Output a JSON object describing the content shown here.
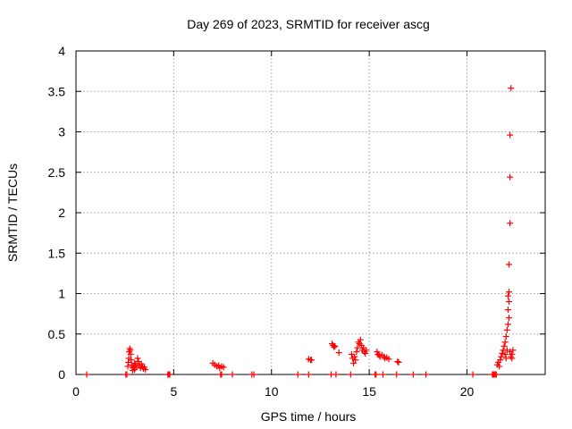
{
  "chart_data": {
    "type": "scatter",
    "title": "Day 269 of 2023, SRMTID for receiver ascg",
    "xlabel": "GPS time / hours",
    "ylabel": "SRMTID / TECUs",
    "xlim": [
      0,
      24
    ],
    "ylim": [
      0,
      4
    ],
    "xticks": [
      0,
      5,
      10,
      15,
      20
    ],
    "xtick_labels": [
      "0",
      "5",
      "10",
      "15",
      "20"
    ],
    "yticks": [
      0,
      0.5,
      1,
      1.5,
      2,
      2.5,
      3,
      3.5,
      4
    ],
    "ytick_labels": [
      "0",
      "0.5",
      "1",
      "1.5",
      "2",
      "2.5",
      "3",
      "3.5",
      "4"
    ],
    "grid": true,
    "marker": "+",
    "color": "#ff0000",
    "series": [
      {
        "name": "SRMTID",
        "points": [
          [
            0.55,
            0.0
          ],
          [
            2.55,
            0.0
          ],
          [
            2.6,
            0.0
          ],
          [
            2.65,
            0.1
          ],
          [
            2.68,
            0.15
          ],
          [
            2.7,
            0.2
          ],
          [
            2.72,
            0.28
          ],
          [
            2.75,
            0.32
          ],
          [
            2.78,
            0.3
          ],
          [
            2.8,
            0.25
          ],
          [
            2.82,
            0.18
          ],
          [
            2.85,
            0.12
          ],
          [
            2.9,
            0.08
          ],
          [
            2.95,
            0.1
          ],
          [
            3.0,
            0.14
          ],
          [
            3.05,
            0.12
          ],
          [
            3.1,
            0.09
          ],
          [
            3.15,
            0.2
          ],
          [
            3.2,
            0.16
          ],
          [
            3.25,
            0.11
          ],
          [
            3.3,
            0.08
          ],
          [
            3.35,
            0.13
          ],
          [
            3.4,
            0.1
          ],
          [
            3.45,
            0.07
          ],
          [
            3.5,
            0.09
          ],
          [
            3.55,
            0.06
          ],
          [
            2.9,
            0.05
          ],
          [
            3.0,
            0.06
          ],
          [
            4.7,
            0.0
          ],
          [
            4.75,
            0.0
          ],
          [
            4.8,
            0.0
          ],
          [
            7.0,
            0.14
          ],
          [
            7.1,
            0.12
          ],
          [
            7.2,
            0.1
          ],
          [
            7.3,
            0.11
          ],
          [
            7.35,
            0.08
          ],
          [
            7.45,
            0.1
          ],
          [
            7.55,
            0.09
          ],
          [
            7.4,
            0.0
          ],
          [
            7.45,
            0.0
          ],
          [
            8.0,
            0.0
          ],
          [
            9.0,
            0.0
          ],
          [
            9.1,
            0.0
          ],
          [
            11.35,
            0.0
          ],
          [
            11.9,
            0.19
          ],
          [
            12.0,
            0.18
          ],
          [
            12.05,
            0.18
          ],
          [
            11.9,
            0.0
          ],
          [
            13.05,
            0.0
          ],
          [
            13.1,
            0.38
          ],
          [
            13.15,
            0.36
          ],
          [
            13.2,
            0.34
          ],
          [
            13.25,
            0.35
          ],
          [
            13.3,
            0.0
          ],
          [
            13.45,
            0.27
          ],
          [
            14.05,
            0.0
          ],
          [
            14.1,
            0.25
          ],
          [
            14.15,
            0.2
          ],
          [
            14.2,
            0.14
          ],
          [
            14.25,
            0.22
          ],
          [
            14.3,
            0.18
          ],
          [
            14.35,
            0.28
          ],
          [
            14.4,
            0.33
          ],
          [
            14.45,
            0.4
          ],
          [
            14.5,
            0.38
          ],
          [
            14.55,
            0.43
          ],
          [
            14.6,
            0.36
          ],
          [
            14.65,
            0.3
          ],
          [
            14.7,
            0.33
          ],
          [
            14.75,
            0.28
          ],
          [
            14.8,
            0.26
          ],
          [
            14.85,
            0.3
          ],
          [
            15.3,
            0.0
          ],
          [
            15.35,
            0.0
          ],
          [
            15.4,
            0.28
          ],
          [
            15.45,
            0.25
          ],
          [
            15.5,
            0.24
          ],
          [
            15.55,
            0.22
          ],
          [
            15.65,
            0.24
          ],
          [
            15.7,
            0.0
          ],
          [
            15.75,
            0.22
          ],
          [
            15.8,
            0.2
          ],
          [
            15.9,
            0.21
          ],
          [
            16.0,
            0.19
          ],
          [
            16.4,
            0.0
          ],
          [
            16.45,
            0.16
          ],
          [
            16.5,
            0.15
          ],
          [
            17.25,
            0.0
          ],
          [
            17.9,
            0.0
          ],
          [
            20.3,
            0.0
          ],
          [
            21.3,
            0.0
          ],
          [
            21.35,
            0.0
          ],
          [
            21.4,
            0.0
          ],
          [
            21.45,
            0.0
          ],
          [
            21.5,
            0.0
          ],
          [
            21.55,
            0.12
          ],
          [
            21.6,
            0.15
          ],
          [
            21.65,
            0.1
          ],
          [
            21.7,
            0.18
          ],
          [
            21.75,
            0.22
          ],
          [
            21.8,
            0.26
          ],
          [
            21.85,
            0.3
          ],
          [
            21.9,
            0.35
          ],
          [
            21.95,
            0.25
          ],
          [
            22.0,
            0.2
          ],
          [
            22.05,
            0.3
          ],
          [
            21.95,
            0.4
          ],
          [
            22.0,
            0.47
          ],
          [
            22.05,
            0.55
          ],
          [
            22.1,
            0.62
          ],
          [
            22.15,
            0.7
          ],
          [
            22.1,
            0.8
          ],
          [
            22.15,
            0.9
          ],
          [
            22.1,
            0.97
          ],
          [
            22.15,
            1.02
          ],
          [
            22.2,
            0.28
          ],
          [
            22.25,
            0.22
          ],
          [
            22.3,
            0.25
          ],
          [
            22.35,
            0.3
          ],
          [
            22.3,
            0.2
          ],
          [
            22.15,
            1.36
          ],
          [
            22.2,
            1.87
          ],
          [
            22.2,
            2.44
          ],
          [
            22.2,
            2.96
          ],
          [
            22.25,
            3.54
          ]
        ]
      }
    ]
  }
}
